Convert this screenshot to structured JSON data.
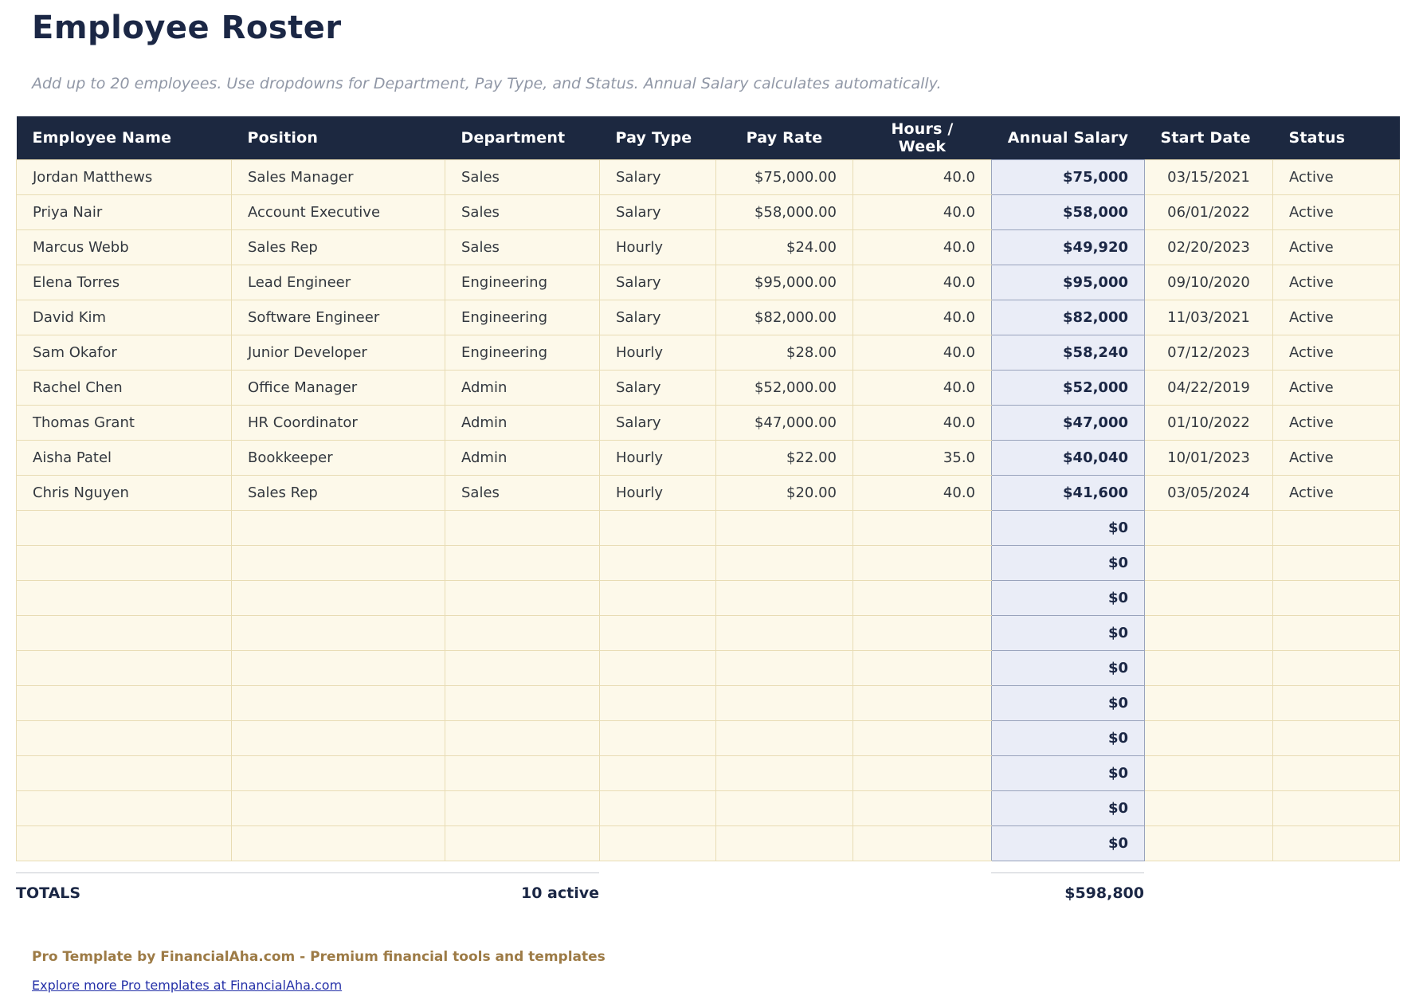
{
  "title": "Employee Roster",
  "subtitle": "Add up to 20 employees. Use dropdowns for Department, Pay Type, and Status. Annual Salary calculates automatically.",
  "table": {
    "columns": [
      {
        "label": "Employee Name"
      },
      {
        "label": "Position"
      },
      {
        "label": "Department"
      },
      {
        "label": "Pay Type"
      },
      {
        "label": "Pay Rate"
      },
      {
        "label": "Hours / Week"
      },
      {
        "label": "Annual Salary"
      },
      {
        "label": "Start Date"
      },
      {
        "label": "Status"
      }
    ],
    "employees": [
      {
        "name": "Jordan Matthews",
        "position": "Sales Manager",
        "department": "Sales",
        "pay_type": "Salary",
        "pay_rate": "$75,000.00",
        "hours": "40.0",
        "annual_salary": "$75,000",
        "start_date": "03/15/2021",
        "status": "Active"
      },
      {
        "name": "Priya Nair",
        "position": "Account Executive",
        "department": "Sales",
        "pay_type": "Salary",
        "pay_rate": "$58,000.00",
        "hours": "40.0",
        "annual_salary": "$58,000",
        "start_date": "06/01/2022",
        "status": "Active"
      },
      {
        "name": "Marcus Webb",
        "position": "Sales Rep",
        "department": "Sales",
        "pay_type": "Hourly",
        "pay_rate": "$24.00",
        "hours": "40.0",
        "annual_salary": "$49,920",
        "start_date": "02/20/2023",
        "status": "Active"
      },
      {
        "name": "Elena Torres",
        "position": "Lead Engineer",
        "department": "Engineering",
        "pay_type": "Salary",
        "pay_rate": "$95,000.00",
        "hours": "40.0",
        "annual_salary": "$95,000",
        "start_date": "09/10/2020",
        "status": "Active"
      },
      {
        "name": "David Kim",
        "position": "Software Engineer",
        "department": "Engineering",
        "pay_type": "Salary",
        "pay_rate": "$82,000.00",
        "hours": "40.0",
        "annual_salary": "$82,000",
        "start_date": "11/03/2021",
        "status": "Active"
      },
      {
        "name": "Sam Okafor",
        "position": "Junior Developer",
        "department": "Engineering",
        "pay_type": "Hourly",
        "pay_rate": "$28.00",
        "hours": "40.0",
        "annual_salary": "$58,240",
        "start_date": "07/12/2023",
        "status": "Active"
      },
      {
        "name": "Rachel Chen",
        "position": "Office Manager",
        "department": "Admin",
        "pay_type": "Salary",
        "pay_rate": "$52,000.00",
        "hours": "40.0",
        "annual_salary": "$52,000",
        "start_date": "04/22/2019",
        "status": "Active"
      },
      {
        "name": "Thomas Grant",
        "position": "HR Coordinator",
        "department": "Admin",
        "pay_type": "Salary",
        "pay_rate": "$47,000.00",
        "hours": "40.0",
        "annual_salary": "$47,000",
        "start_date": "01/10/2022",
        "status": "Active"
      },
      {
        "name": "Aisha Patel",
        "position": "Bookkeeper",
        "department": "Admin",
        "pay_type": "Hourly",
        "pay_rate": "$22.00",
        "hours": "35.0",
        "annual_salary": "$40,040",
        "start_date": "10/01/2023",
        "status": "Active"
      },
      {
        "name": "Chris Nguyen",
        "position": "Sales Rep",
        "department": "Sales",
        "pay_type": "Hourly",
        "pay_rate": "$20.00",
        "hours": "40.0",
        "annual_salary": "$41,600",
        "start_date": "03/05/2024",
        "status": "Active"
      }
    ],
    "empty_rows": 10,
    "empty_annual_salary": "$0"
  },
  "totals": {
    "label": "TOTALS",
    "active_count": "10 active",
    "annual_salary_total": "$598,800"
  },
  "footer": {
    "branding": "Pro Template by FinancialAha.com - Premium financial tools and templates",
    "link": "Explore more Pro templates at FinancialAha.com"
  },
  "colors": {
    "header_bg": "#1c2840",
    "accent_navy": "#1b2745",
    "row_bg": "#fdf9ea",
    "row_border": "#e8dcb4",
    "salary_col_bg": "#eaedf7",
    "salary_col_border": "#99a3bc",
    "brand_brown": "#9d7b46",
    "link_blue": "#2430a8"
  }
}
